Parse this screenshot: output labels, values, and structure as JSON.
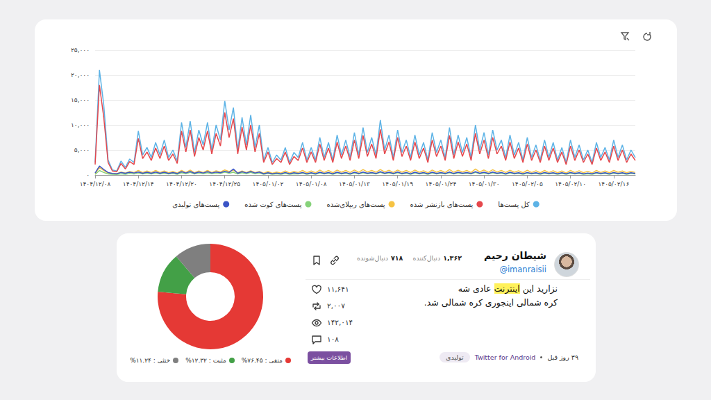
{
  "chart_data": [
    {
      "type": "line",
      "categories": [
        "۱۴۰۴/۱۲/۰۸",
        null,
        null,
        null,
        null,
        null,
        null,
        null,
        null,
        null,
        "۱۴۰۴/۱۲/۱۴",
        null,
        null,
        null,
        null,
        null,
        null,
        null,
        null,
        null,
        "۱۴۰۴/۱۲/۲۰",
        null,
        null,
        null,
        null,
        null,
        null,
        null,
        null,
        null,
        "۱۴۰۴/۱۲/۲۵",
        null,
        null,
        null,
        null,
        null,
        null,
        null,
        null,
        null,
        "۱۴۰۵/۰۱/۰۲",
        null,
        null,
        null,
        null,
        null,
        null,
        null,
        null,
        null,
        "۱۴۰۵/۰۱/۰۸",
        null,
        null,
        null,
        null,
        null,
        null,
        null,
        null,
        null,
        "۱۴۰۵/۰۱/۱۳",
        null,
        null,
        null,
        null,
        null,
        null,
        null,
        null,
        null,
        "۱۴۰۵/۰۱/۱۹",
        null,
        null,
        null,
        null,
        null,
        null,
        null,
        null,
        null,
        "۱۴۰۵/۰۱/۲۴",
        null,
        null,
        null,
        null,
        null,
        null,
        null,
        null,
        null,
        "۱۴۰۵/۰۱/۳۰",
        null,
        null,
        null,
        null,
        null,
        null,
        null,
        null,
        null,
        "۱۴۰۵/۰۲/۰۵",
        null,
        null,
        null,
        null,
        null,
        null,
        null,
        null,
        null,
        "۱۴۰۵/۰۲/۱۰",
        null,
        null,
        null,
        null,
        null,
        null,
        null,
        null,
        null,
        "۱۴۰۵/۰۲/۱۶",
        null,
        null,
        null,
        null,
        null
      ],
      "ylim": [
        0,
        25000
      ],
      "yticks": [
        {
          "value": 0,
          "label": "۰"
        },
        {
          "value": 5000,
          "label": "۵,۰۰۰"
        },
        {
          "value": 10000,
          "label": "۱۰,۰۰۰"
        },
        {
          "value": 15000,
          "label": "۱۵,۰۰۰"
        },
        {
          "value": 20000,
          "label": "۲۰,۰۰۰"
        },
        {
          "value": 25000,
          "label": "۲۵,۰۰۰"
        }
      ],
      "grid": true,
      "legend": "bottom",
      "marker": "none",
      "series": [
        {
          "name": "کل پست‌ها",
          "color": "#5db3e6",
          "values": [
            2500,
            21000,
            14000,
            3000,
            1000,
            800,
            2800,
            1500,
            3200,
            2500,
            8800,
            4000,
            5500,
            3500,
            6500,
            4000,
            7000,
            3500,
            5000,
            2800,
            10500,
            5500,
            10800,
            4500,
            9000,
            6000,
            10500,
            5000,
            10000,
            7000,
            14800,
            9000,
            13500,
            5000,
            11500,
            6000,
            12000,
            5500,
            10000,
            3000,
            5500,
            2500,
            4000,
            3000,
            5500,
            2500,
            4500,
            3500,
            6500,
            3000,
            5500,
            3000,
            7500,
            3500,
            6500,
            3000,
            8000,
            4000,
            7000,
            3500,
            8500,
            4000,
            9500,
            4500,
            7500,
            4000,
            11000,
            5000,
            8000,
            3500,
            9000,
            4500,
            7000,
            3500,
            8000,
            4000,
            6500,
            3000,
            8500,
            4500,
            7000,
            3500,
            9500,
            4000,
            8000,
            4500,
            7500,
            3500,
            10000,
            5000,
            8500,
            4000,
            9000,
            5000,
            7000,
            3500,
            8000,
            4000,
            6500,
            3000,
            7500,
            3500,
            6000,
            3000,
            7000,
            3500,
            6500,
            3000,
            5500,
            2500,
            7000,
            3500,
            6000,
            3000,
            5000,
            2500,
            6500,
            3500,
            5500,
            3000,
            7000,
            3500,
            6000,
            3000,
            5000,
            3500
          ]
        },
        {
          "name": "پست‌های بازنشر شده",
          "color": "#e5484d",
          "values": [
            2100,
            18000,
            11500,
            2500,
            800,
            650,
            2300,
            1200,
            2700,
            2100,
            7300,
            3300,
            4600,
            2900,
            5400,
            3300,
            5800,
            2900,
            4200,
            2300,
            8800,
            4600,
            9000,
            3700,
            7500,
            5000,
            8800,
            4200,
            8300,
            5800,
            12500,
            7500,
            11300,
            4200,
            9600,
            5000,
            10000,
            4600,
            8300,
            2500,
            4600,
            2100,
            3300,
            2500,
            4600,
            2100,
            3700,
            2900,
            5400,
            2500,
            4600,
            2500,
            6200,
            2900,
            5400,
            2500,
            6600,
            3300,
            5800,
            2900,
            7000,
            3300,
            7900,
            3700,
            6200,
            3300,
            9100,
            4200,
            6600,
            2900,
            7500,
            3700,
            5800,
            2900,
            6600,
            3300,
            5400,
            2500,
            7000,
            3700,
            5800,
            2900,
            7900,
            3300,
            6600,
            3700,
            6200,
            2900,
            8300,
            4200,
            7000,
            3300,
            7500,
            4200,
            5800,
            2900,
            6600,
            3300,
            5400,
            2500,
            6200,
            2900,
            5000,
            2500,
            5800,
            2900,
            5400,
            2500,
            4600,
            2100,
            5800,
            2900,
            5000,
            2500,
            4200,
            2100,
            5400,
            2900,
            4600,
            2500,
            5800,
            2900,
            5000,
            2500,
            4200,
            2900
          ]
        },
        {
          "name": "پست‌های ریپلای‌شده",
          "color": "#f6c343",
          "values": [
            300,
            1500,
            900,
            400,
            300,
            250,
            600,
            400,
            700,
            500,
            900,
            500,
            800,
            500,
            900,
            500,
            800,
            450,
            700,
            400,
            900,
            500,
            1000,
            450,
            800,
            500,
            900,
            500,
            850,
            600,
            1000,
            700,
            950,
            450,
            800,
            500,
            850,
            500,
            700,
            350,
            700,
            350,
            600,
            400,
            800,
            400,
            700,
            500,
            900,
            450,
            800,
            450,
            1000,
            500,
            900,
            450,
            1000,
            550,
            900,
            500,
            1000,
            550,
            1100,
            600,
            900,
            550,
            1100,
            600,
            950,
            500,
            1000,
            550,
            900,
            500,
            1000,
            550,
            850,
            450,
            1000,
            550,
            900,
            500,
            1100,
            550,
            950,
            600,
            900,
            500,
            1200,
            600,
            1000,
            550,
            1050,
            600,
            900,
            500,
            950,
            550,
            850,
            450,
            950,
            500,
            850,
            450,
            900,
            500,
            850,
            450,
            800,
            400,
            900,
            500,
            850,
            450,
            750,
            400,
            900,
            500,
            800,
            450,
            900,
            550,
            800,
            450,
            750,
            500
          ]
        },
        {
          "name": "پست‌های کوت شده",
          "color": "#86d27a",
          "values": [
            100,
            900,
            500,
            200,
            150,
            100,
            250,
            150,
            300,
            200,
            400,
            200,
            350,
            200,
            400,
            200,
            350,
            200,
            300,
            150,
            450,
            250,
            500,
            200,
            400,
            250,
            450,
            250,
            400,
            300,
            600,
            350,
            550,
            200,
            450,
            250,
            500,
            250,
            400,
            150,
            300,
            150,
            250,
            150,
            300,
            150,
            250,
            200,
            350,
            150,
            300,
            150,
            400,
            200,
            350,
            150,
            400,
            200,
            350,
            150,
            400,
            200,
            450,
            250,
            350,
            200,
            500,
            250,
            400,
            200,
            450,
            200,
            350,
            150,
            400,
            200,
            350,
            150,
            400,
            200,
            350,
            200,
            450,
            200,
            400,
            250,
            350,
            200,
            500,
            250,
            400,
            200,
            450,
            250,
            350,
            150,
            400,
            200,
            300,
            150,
            350,
            200,
            300,
            150,
            350,
            200,
            300,
            150,
            300,
            150,
            350,
            200,
            300,
            150,
            250,
            150,
            350,
            200,
            300,
            150,
            350,
            200,
            300,
            150,
            300,
            200
          ]
        },
        {
          "name": "پست‌های تولیدی",
          "color": "#3b55c6",
          "values": [
            400,
            1800,
            1100,
            500,
            300,
            250,
            500,
            350,
            550,
            400,
            600,
            350,
            550,
            350,
            600,
            350,
            550,
            300,
            500,
            300,
            650,
            400,
            700,
            350,
            600,
            400,
            650,
            400,
            600,
            450,
            750,
            500,
            1200,
            350,
            650,
            400,
            700,
            400,
            600,
            250,
            450,
            250,
            400,
            250,
            500,
            250,
            450,
            300,
            500,
            250,
            450,
            250,
            550,
            300,
            500,
            250,
            550,
            300,
            500,
            250,
            550,
            300,
            600,
            350,
            500,
            300,
            650,
            350,
            550,
            300,
            600,
            300,
            500,
            250,
            550,
            300,
            500,
            250,
            550,
            300,
            500,
            300,
            600,
            300,
            550,
            350,
            500,
            300,
            650,
            350,
            550,
            300,
            600,
            350,
            500,
            250,
            550,
            300,
            450,
            250,
            500,
            300,
            450,
            250,
            500,
            300,
            450,
            250,
            450,
            250,
            500,
            300,
            450,
            250,
            400,
            250,
            500,
            300,
            450,
            250,
            500,
            300,
            450,
            250,
            450,
            300
          ]
        }
      ]
    },
    {
      "type": "pie",
      "categories": [
        "منفی : ۷۶.۴۵%",
        "مثبت : ۱۲.۳۲%",
        "خنثی : ۱۱.۲۴%"
      ],
      "values": [
        76.45,
        12.32,
        11.24
      ],
      "colors": [
        "#e53935",
        "#43a047",
        "#7f7f7f"
      ],
      "legend": "bottom"
    }
  ],
  "post": {
    "author": {
      "name": "شیطان رحیم",
      "handle": "@imanraisii"
    },
    "followers": {
      "count": "۱,۳۶۲",
      "label": "دنبال‌کننده"
    },
    "following": {
      "count": "۷۱۸",
      "label": "دنبال‌شونده"
    },
    "text": [
      "نزارید این اینترنت عادی شه",
      "کره شمالی اینجوری کره شمالی شد."
    ],
    "highlight": "اینترنت",
    "stats": {
      "likes": "۱۱,۶۴۱",
      "retweets": "۲,۰۰۷",
      "views": "۱۴۲,۰۱۴",
      "replies": "۱۰۸"
    },
    "button": "اطلاعات بیشتر",
    "time": "۳۹ روز قبل",
    "source": "Twitter for Android",
    "tag": "تولیدی"
  }
}
